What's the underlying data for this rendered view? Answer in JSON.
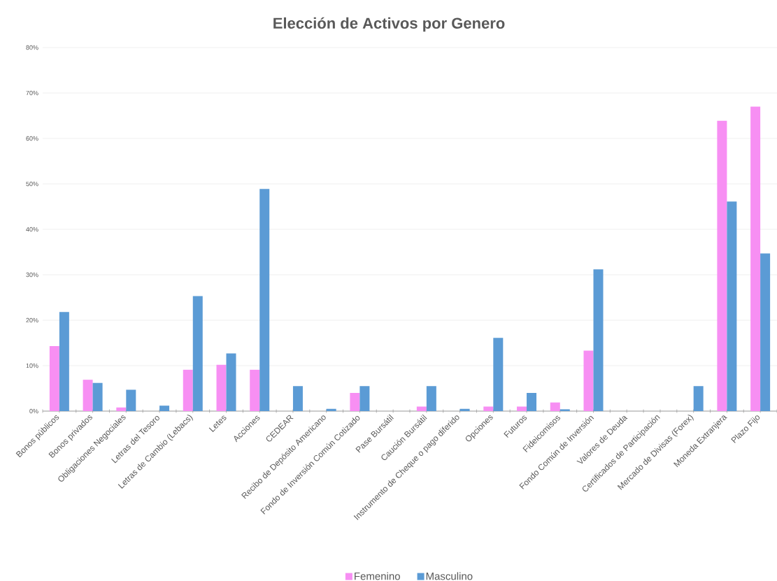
{
  "chart_data": {
    "type": "bar",
    "title": "Elección de Activos por Genero",
    "categories": [
      "Bonos públicos",
      "Bonos privados",
      "Obligaciones Negociales",
      "Letras del Tesoro",
      "Letras de Cambio (Lebacs)",
      "Letes",
      "Acciones",
      "CEDEAR",
      "Recibo de Depósito Americano",
      "Fondo de Inversión Común Cotizado",
      "Pase Bursátil",
      "Caución Bursátil",
      "Instrumento de Cheque o pago diferido",
      "Opciones",
      "Futuros",
      "Fideicomisos",
      "Fondo Común de Inversión",
      "Valores de Deuda",
      "Certificados de Participación",
      "Mercado de Divisas (Forex)",
      "Moneda Extranjera",
      "Plazo Fijo"
    ],
    "series": [
      {
        "name": "Femenino",
        "color": "#f78ff3",
        "values": [
          14.3,
          6.9,
          0.8,
          0,
          9.1,
          10.2,
          9.1,
          0,
          0,
          4.0,
          0,
          1.0,
          0,
          1.0,
          1.0,
          1.9,
          13.3,
          0,
          0,
          0,
          63.9,
          67.0
        ]
      },
      {
        "name": "Masculino",
        "color": "#5b9bd5",
        "values": [
          21.8,
          6.2,
          4.7,
          1.2,
          25.3,
          12.7,
          48.9,
          5.5,
          0.5,
          5.5,
          0,
          5.5,
          0.5,
          16.1,
          4.0,
          0.4,
          31.2,
          0,
          0,
          5.5,
          46.1,
          34.7
        ]
      }
    ],
    "ylim": [
      0,
      80
    ],
    "yticks": [
      {
        "value": 0,
        "label": "0%"
      },
      {
        "value": 10,
        "label": "10%"
      },
      {
        "value": 20,
        "label": "20%"
      },
      {
        "value": 30,
        "label": "30%"
      },
      {
        "value": 40,
        "label": "40%"
      },
      {
        "value": 50,
        "label": "50%"
      },
      {
        "value": 60,
        "label": "60%"
      },
      {
        "value": 70,
        "label": "70%"
      },
      {
        "value": 80,
        "label": "80%"
      }
    ],
    "grid": "y",
    "legend": "bottom"
  }
}
